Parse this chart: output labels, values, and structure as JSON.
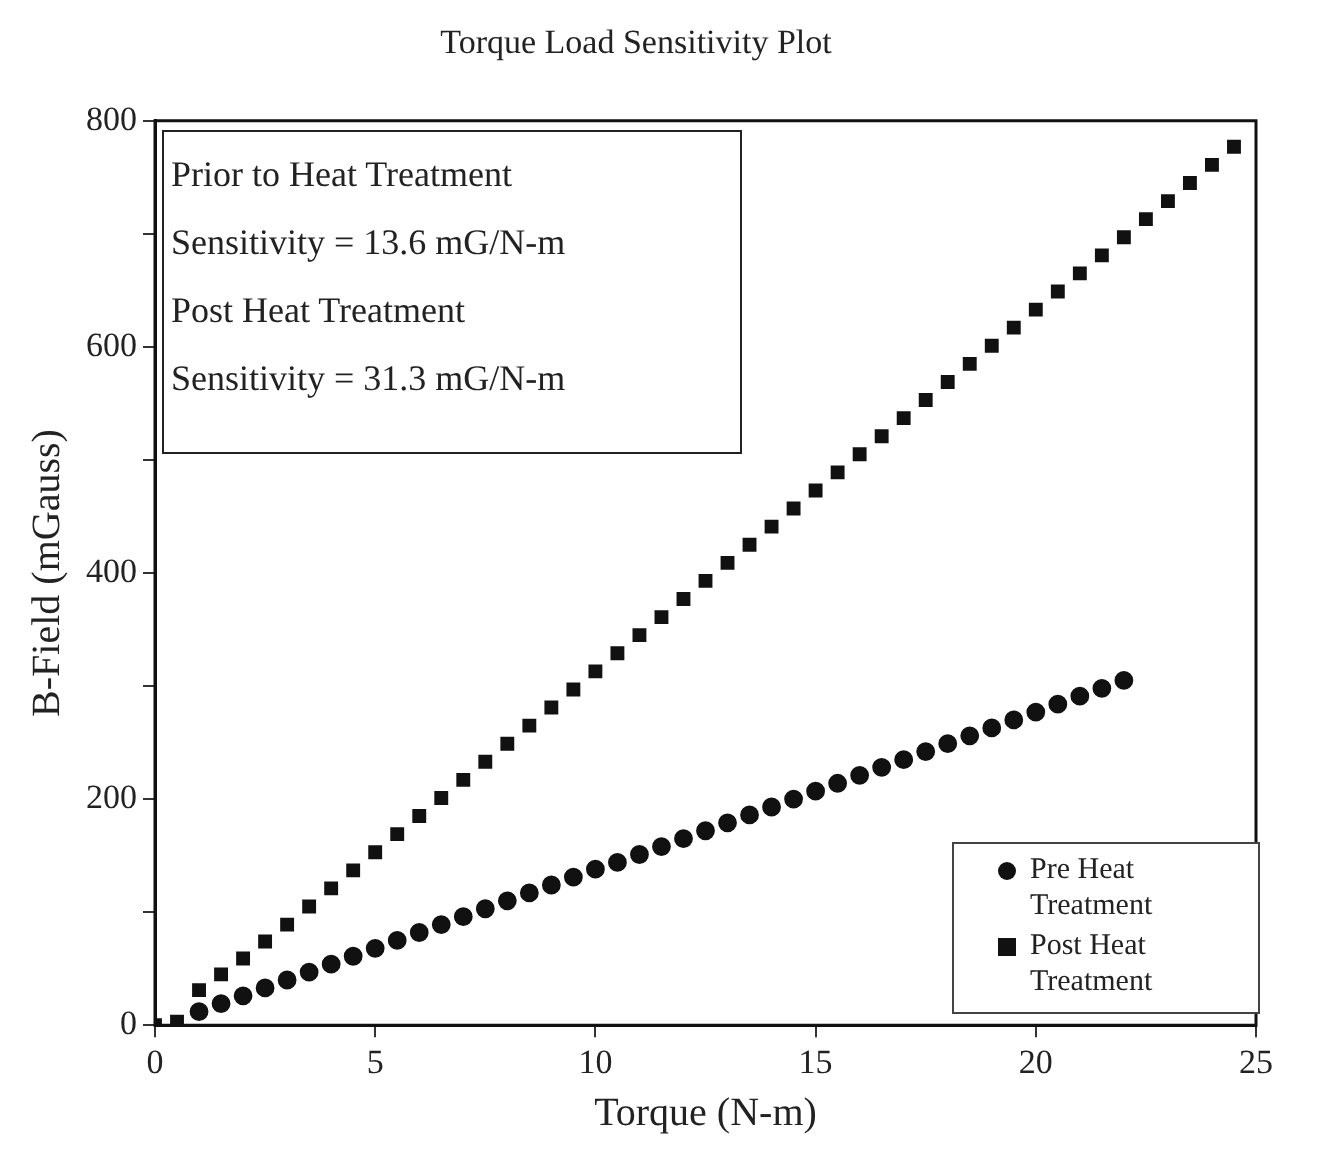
{
  "chart_data": {
    "type": "scatter",
    "title": "Torque Load Sensitivity Plot",
    "xlabel": "Torque (N-m)",
    "ylabel": "B-Field (mGauss)",
    "x": [
      0,
      0.5,
      1,
      1.5,
      2,
      2.5,
      3,
      3.5,
      4,
      4.5,
      5,
      5.5,
      6,
      6.5,
      7,
      7.5,
      8,
      8.5,
      9,
      9.5,
      10,
      10.5,
      11,
      11.5,
      12,
      12.5,
      13,
      13.5,
      14,
      14.5,
      15,
      15.5,
      16,
      16.5,
      17,
      17.5,
      18,
      18.5,
      19,
      19.5,
      20,
      20.5,
      21,
      21.5,
      22,
      22.5,
      23,
      23.5,
      24,
      24.5
    ],
    "series": [
      {
        "name": "Pre Heat Treatment",
        "color": "#111111",
        "marker": "circle",
        "values": [
          null,
          null,
          12,
          19,
          26,
          33,
          40,
          47,
          54,
          61,
          68,
          75,
          82,
          89,
          96,
          103,
          110,
          117,
          124,
          131,
          138,
          144,
          151,
          158,
          165,
          172,
          179,
          186,
          193,
          200,
          207,
          214,
          221,
          228,
          235,
          242,
          249,
          256,
          263,
          270,
          277,
          284,
          291,
          298,
          305,
          null,
          null,
          null,
          null,
          null
        ]
      },
      {
        "name": "Post Heat Treatment",
        "color": "#111111",
        "marker": "square",
        "values": [
          0,
          3,
          31,
          45,
          59,
          74,
          89,
          105,
          121,
          137,
          153,
          169,
          185,
          201,
          217,
          233,
          249,
          265,
          281,
          297,
          313,
          329,
          345,
          361,
          377,
          393,
          409,
          425,
          441,
          457,
          473,
          489,
          505,
          521,
          537,
          553,
          569,
          585,
          601,
          617,
          633,
          649,
          665,
          681,
          697,
          713,
          729,
          745,
          761,
          777
        ]
      }
    ],
    "xlim": [
      0,
      25
    ],
    "xticks": [
      0,
      5,
      10,
      15,
      20,
      25
    ],
    "ylim": [
      0,
      800
    ],
    "yticks": [
      0,
      {
        "value": 100,
        "label": null
      },
      200,
      {
        "value": 300,
        "label": null
      },
      400,
      {
        "value": 500,
        "label": null
      },
      600,
      {
        "value": 700,
        "label": null
      },
      800
    ],
    "grid": false,
    "legend": "bottom right",
    "annotations": [
      "Prior to Heat Treatment",
      "Sensitivity = 13.6 mG/N-m",
      "Post Heat Treatment",
      "Sensitivity = 31.3 mG/N-m"
    ]
  }
}
